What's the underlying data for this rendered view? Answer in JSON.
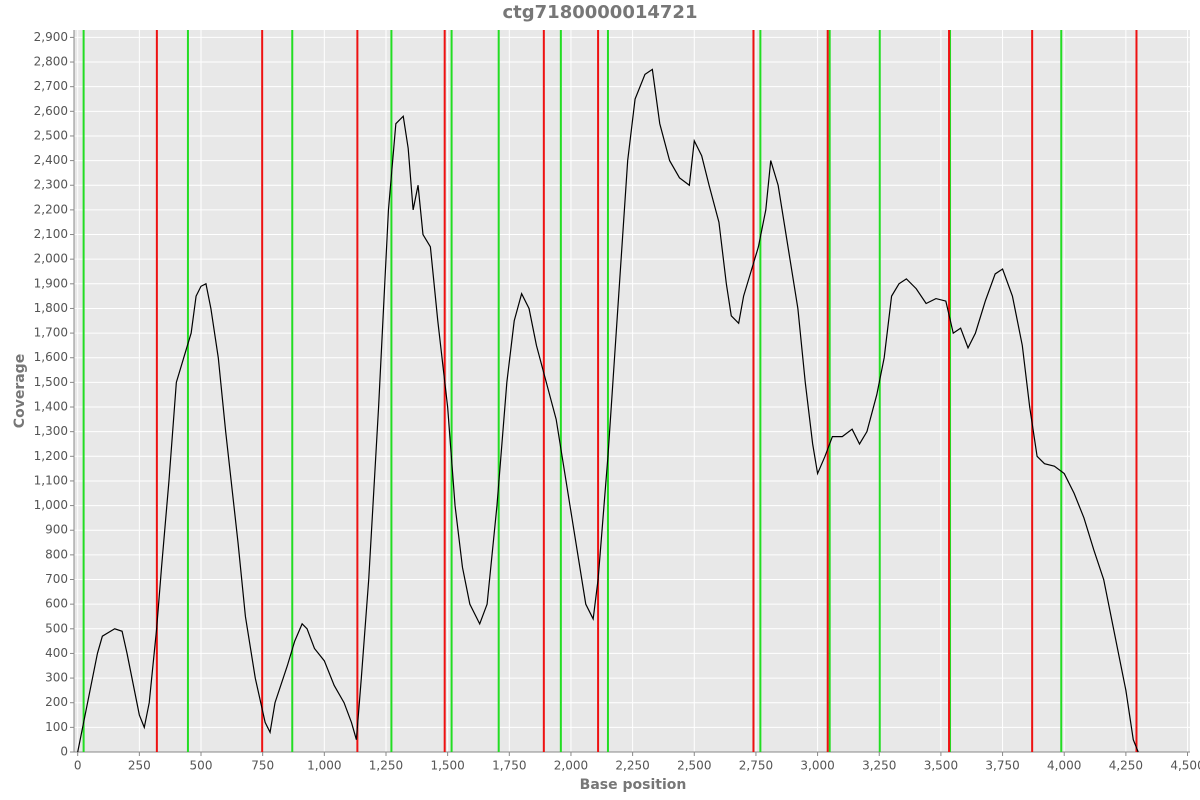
{
  "chart_data": {
    "type": "line",
    "title": "ctg7180000014721",
    "x_label": "Base position",
    "y_label": "Coverage",
    "color": "#000000",
    "grid": true,
    "x": [
      0,
      20,
      50,
      80,
      100,
      150,
      180,
      200,
      230,
      250,
      270,
      290,
      320,
      340,
      370,
      400,
      430,
      460,
      480,
      500,
      520,
      540,
      570,
      600,
      650,
      680,
      720,
      760,
      780,
      800,
      850,
      880,
      910,
      930,
      960,
      1000,
      1040,
      1080,
      1110,
      1130,
      1150,
      1180,
      1220,
      1260,
      1290,
      1320,
      1340,
      1360,
      1380,
      1400,
      1430,
      1460,
      1500,
      1530,
      1560,
      1590,
      1630,
      1660,
      1700,
      1740,
      1770,
      1800,
      1830,
      1860,
      1900,
      1940,
      1980,
      2020,
      2060,
      2090,
      2110,
      2150,
      2190,
      2230,
      2260,
      2300,
      2330,
      2360,
      2400,
      2440,
      2480,
      2500,
      2530,
      2560,
      2600,
      2630,
      2650,
      2680,
      2700,
      2730,
      2760,
      2790,
      2810,
      2840,
      2880,
      2920,
      2950,
      2980,
      3000,
      3030,
      3060,
      3100,
      3140,
      3170,
      3200,
      3240,
      3270,
      3300,
      3330,
      3360,
      3400,
      3440,
      3480,
      3520,
      3550,
      3580,
      3610,
      3640,
      3680,
      3720,
      3750,
      3790,
      3830,
      3860,
      3890,
      3920,
      3960,
      4000,
      4040,
      4080,
      4120,
      4160,
      4200,
      4250,
      4280,
      4300
    ],
    "values": [
      0,
      100,
      250,
      400,
      470,
      500,
      490,
      400,
      250,
      150,
      100,
      200,
      500,
      750,
      1100,
      1500,
      1600,
      1700,
      1850,
      1890,
      1900,
      1800,
      1600,
      1300,
      850,
      550,
      300,
      120,
      80,
      200,
      350,
      450,
      520,
      500,
      420,
      370,
      270,
      200,
      120,
      50,
      300,
      700,
      1400,
      2200,
      2550,
      2580,
      2450,
      2200,
      2300,
      2100,
      2050,
      1750,
      1400,
      1000,
      750,
      600,
      520,
      600,
      1000,
      1500,
      1750,
      1860,
      1800,
      1650,
      1500,
      1350,
      1100,
      850,
      600,
      540,
      700,
      1200,
      1800,
      2400,
      2650,
      2750,
      2770,
      2550,
      2400,
      2330,
      2300,
      2480,
      2420,
      2300,
      2150,
      1900,
      1770,
      1740,
      1850,
      1950,
      2050,
      2200,
      2400,
      2300,
      2050,
      1800,
      1500,
      1250,
      1130,
      1200,
      1280,
      1280,
      1310,
      1250,
      1300,
      1450,
      1600,
      1850,
      1900,
      1920,
      1880,
      1820,
      1840,
      1830,
      1700,
      1720,
      1640,
      1700,
      1830,
      1940,
      1960,
      1850,
      1650,
      1400,
      1200,
      1170,
      1160,
      1130,
      1050,
      950,
      820,
      700,
      500,
      250,
      50,
      0
    ],
    "vlines": [
      {
        "color": "#22dd22",
        "x": [
          24,
          447,
          870,
          1272,
          1516,
          1707,
          1959,
          2150,
          2768,
          3049,
          3252,
          3537,
          3988
        ]
      },
      {
        "color": "#ee1111",
        "x": [
          321,
          748,
          1134,
          1488,
          1890,
          2110,
          2740,
          3041,
          3533,
          3870,
          4293
        ]
      }
    ],
    "xlim": [
      -15,
      4510
    ],
    "ylim": [
      0,
      2930
    ],
    "xticks": [
      0,
      250,
      500,
      750,
      {
        "value": 1000,
        "label": "1,000"
      },
      {
        "value": 1250,
        "label": "1,250"
      },
      {
        "value": 1500,
        "label": "1,500"
      },
      {
        "value": 1750,
        "label": "1,750"
      },
      {
        "value": 2000,
        "label": "2,000"
      },
      {
        "value": 2250,
        "label": "2,250"
      },
      {
        "value": 2500,
        "label": "2,500"
      },
      {
        "value": 2750,
        "label": "2,750"
      },
      {
        "value": 3000,
        "label": "3,000"
      },
      {
        "value": 3250,
        "label": "3,250"
      },
      {
        "value": 3500,
        "label": "3,500"
      },
      {
        "value": 3750,
        "label": "3,750"
      },
      {
        "value": 4000,
        "label": "4,000"
      },
      {
        "value": 4250,
        "label": "4,250"
      },
      {
        "value": 4500,
        "label": "4,500"
      }
    ],
    "yticks": [
      0,
      100,
      200,
      300,
      400,
      500,
      600,
      700,
      800,
      900,
      {
        "value": 1000,
        "label": "1,000"
      },
      {
        "value": 1100,
        "label": "1,100"
      },
      {
        "value": 1200,
        "label": "1,200"
      },
      {
        "value": 1300,
        "label": "1,300"
      },
      {
        "value": 1400,
        "label": "1,400"
      },
      {
        "value": 1500,
        "label": "1,500"
      },
      {
        "value": 1600,
        "label": "1,600"
      },
      {
        "value": 1700,
        "label": "1,700"
      },
      {
        "value": 1800,
        "label": "1,800"
      },
      {
        "value": 1900,
        "label": "1,900"
      },
      {
        "value": 2000,
        "label": "2,000"
      },
      {
        "value": 2100,
        "label": "2,100"
      },
      {
        "value": 2200,
        "label": "2,200"
      },
      {
        "value": 2300,
        "label": "2,300"
      },
      {
        "value": 2400,
        "label": "2,400"
      },
      {
        "value": 2500,
        "label": "2,500"
      },
      {
        "value": 2600,
        "label": "2,600"
      },
      {
        "value": 2700,
        "label": "2,700"
      },
      {
        "value": 2800,
        "label": "2,800"
      },
      {
        "value": 2900,
        "label": "2,900"
      }
    ]
  }
}
